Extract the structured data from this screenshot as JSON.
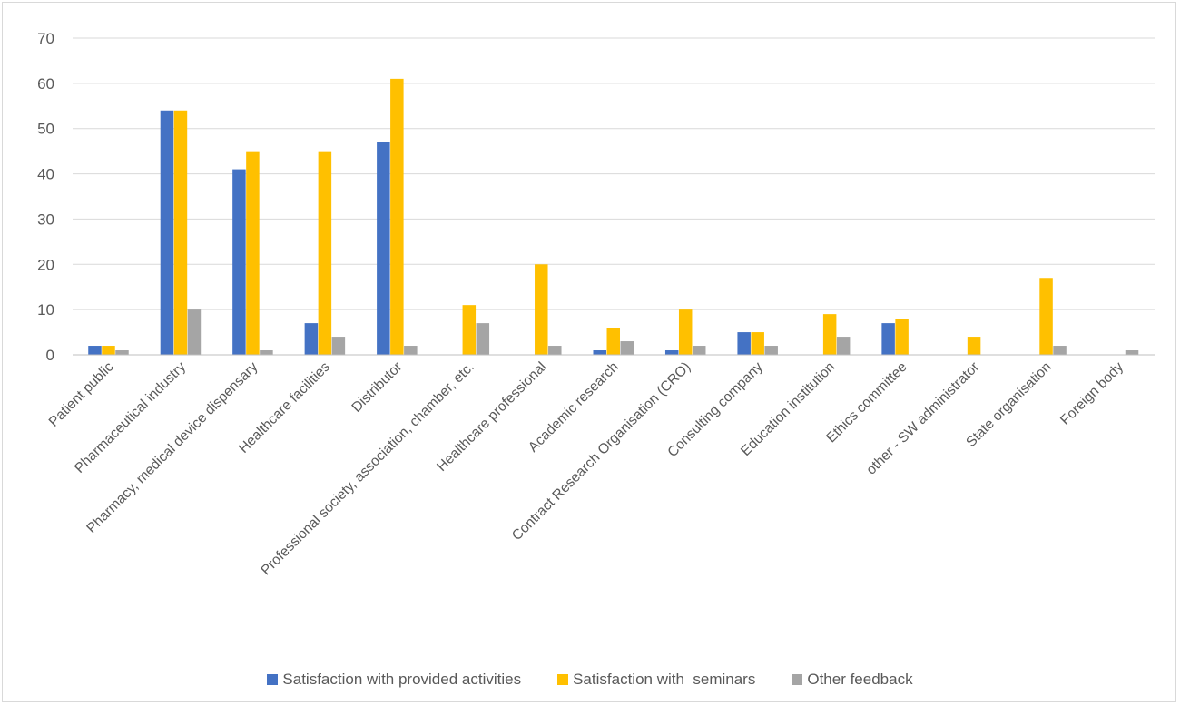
{
  "chart_data": {
    "type": "bar",
    "title": "",
    "xlabel": "",
    "ylabel": "",
    "ylim": [
      0,
      70
    ],
    "yticks": [
      0,
      10,
      20,
      30,
      40,
      50,
      60,
      70
    ],
    "grid": true,
    "legend_position": "bottom",
    "categories": [
      "Patient public",
      "Pharmaceutical industry",
      "Pharmacy, medical device dispensary",
      "Healthcare facilities",
      "Distributor",
      "Professional society, association, chamber, etc.",
      "Healthcare professional",
      "Academic research",
      "Contract Research Organisation (CRO)",
      "Consulting company",
      "Education institution",
      "Ethics committee",
      "other - SW administrator",
      "State organisation",
      "Foreign body"
    ],
    "series": [
      {
        "name": "Satisfaction with provided activities",
        "color": "#4472c4",
        "values": [
          2,
          54,
          41,
          7,
          47,
          0,
          0,
          1,
          1,
          5,
          0,
          7,
          0,
          0,
          0
        ]
      },
      {
        "name": "Satisfaction with  seminars",
        "color": "#ffc000",
        "values": [
          2,
          54,
          45,
          45,
          61,
          11,
          20,
          6,
          10,
          5,
          9,
          8,
          4,
          17,
          0
        ]
      },
      {
        "name": "Other feedback",
        "color": "#a5a5a5",
        "values": [
          1,
          10,
          1,
          4,
          2,
          7,
          2,
          3,
          2,
          2,
          4,
          0,
          0,
          2,
          1
        ]
      }
    ]
  }
}
